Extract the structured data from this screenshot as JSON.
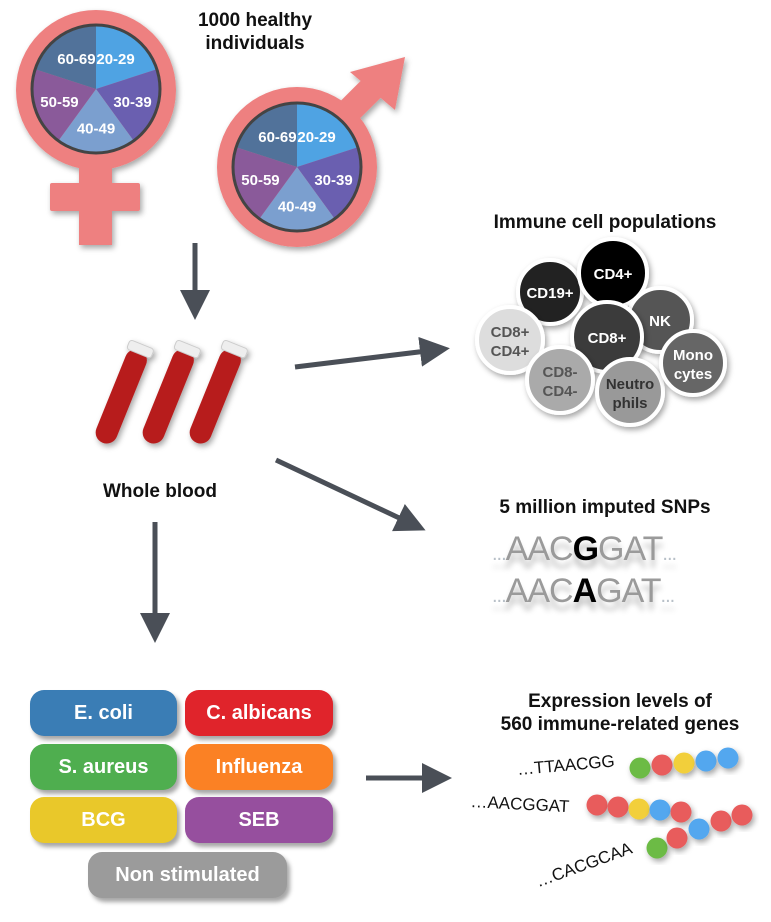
{
  "cohort": {
    "title_line1": "1000 healthy",
    "title_line2": "individuals",
    "age_groups": [
      "20-29",
      "30-39",
      "40-49",
      "50-59",
      "60-69"
    ],
    "age_colors": [
      "#4fa3e3",
      "#6a5fb0",
      "#7b9fcf",
      "#8a5a9a",
      "#51729a"
    ],
    "symbol_color": "#ee8080"
  },
  "blood": {
    "label": "Whole blood"
  },
  "cells": {
    "title": "Immune cell populations",
    "items": [
      {
        "label": "CD19+",
        "fill": "#222222",
        "text": "#ffffff"
      },
      {
        "label": "CD4+",
        "fill": "#000000",
        "text": "#ffffff"
      },
      {
        "label": "NK",
        "fill": "#555555",
        "text": "#ffffff"
      },
      {
        "label": "CD8+ CD4+",
        "fill": "#dddddd",
        "text": "#555555"
      },
      {
        "label": "CD8+",
        "fill": "#3a3a3a",
        "text": "#ffffff"
      },
      {
        "label": "CD8- CD4-",
        "fill": "#aaaaaa",
        "text": "#555555"
      },
      {
        "label": "Neutro phils",
        "fill": "#999999",
        "text": "#333333"
      },
      {
        "label": "Mono cytes",
        "fill": "#666666",
        "text": "#ffffff"
      }
    ]
  },
  "snps": {
    "title": "5 million imputed SNPs",
    "seq1_pre": "AAC",
    "seq1_var": "G",
    "seq1_post": "GAT",
    "seq2_pre": "AAC",
    "seq2_var": "A",
    "seq2_post": "GAT",
    "ellipsis": "..."
  },
  "expression": {
    "title_line1": "Expression levels of",
    "title_line2": "560 immune-related genes",
    "sequences": [
      "…TTAACGG",
      "…AACGGAT",
      "…CACGCAA"
    ]
  },
  "stimuli": [
    {
      "label": "E. coli",
      "color": "#3a7db5"
    },
    {
      "label": "C. albicans",
      "color": "#e0242b"
    },
    {
      "label": "S. aureus",
      "color": "#4fae4f"
    },
    {
      "label": "Influenza",
      "color": "#fb8124"
    },
    {
      "label": "BCG",
      "color": "#e9c82a"
    },
    {
      "label": "SEB",
      "color": "#964f9e"
    },
    {
      "label": "Non stimulated",
      "color": "#9b9b9b"
    }
  ],
  "bead_colors": {
    "green": "#6cbb45",
    "red": "#e85c5c",
    "yellow": "#f2cf3a",
    "blue": "#52a7ef"
  }
}
